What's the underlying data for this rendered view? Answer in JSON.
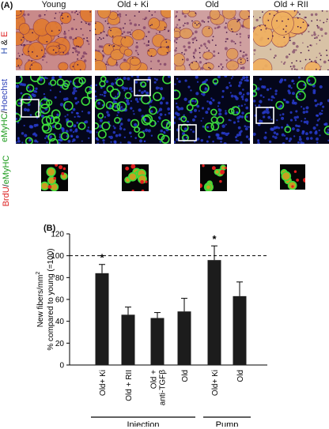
{
  "panelA": {
    "letter": "(A)",
    "columns": [
      "Young",
      "Old + Ki",
      "Old",
      "Old + RII"
    ],
    "row_labels": {
      "he_h": "H",
      "he_amp": " & ",
      "he_e": "E",
      "fl_emyhc": "eMyHC",
      "fl_slash": "/",
      "fl_hoechst": "Hoechst",
      "inset_brdu": "BrdU",
      "inset_slash": "/",
      "inset_emyhc": "eMyHC"
    }
  },
  "panelB": {
    "letter": "(B)"
  },
  "chart_data": {
    "type": "bar",
    "categories": [
      "Old+ Ki",
      "Old + RII",
      "Old +\nanti-TGFβ",
      "Old",
      "Old+ Ki",
      "Old"
    ],
    "values": [
      84,
      46,
      43,
      49,
      96,
      63
    ],
    "errors": [
      8,
      7,
      5,
      12,
      13,
      13
    ],
    "significance": [
      "*",
      "",
      "",
      "",
      "*",
      ""
    ],
    "ylabel_line1": "New fibers/mm",
    "ylabel_sup": "2",
    "ylabel_line2": "% compared to young (=100)",
    "yticks": [
      0,
      20,
      40,
      60,
      80,
      100,
      120
    ],
    "ylim": [
      0,
      120
    ],
    "reference_line": 100,
    "groups": [
      {
        "label": "Injection",
        "bars": [
          0,
          1,
          2,
          3
        ]
      },
      {
        "label": "Pump",
        "bars": [
          4,
          5
        ]
      }
    ],
    "bar_color": "#1c1c1c"
  }
}
